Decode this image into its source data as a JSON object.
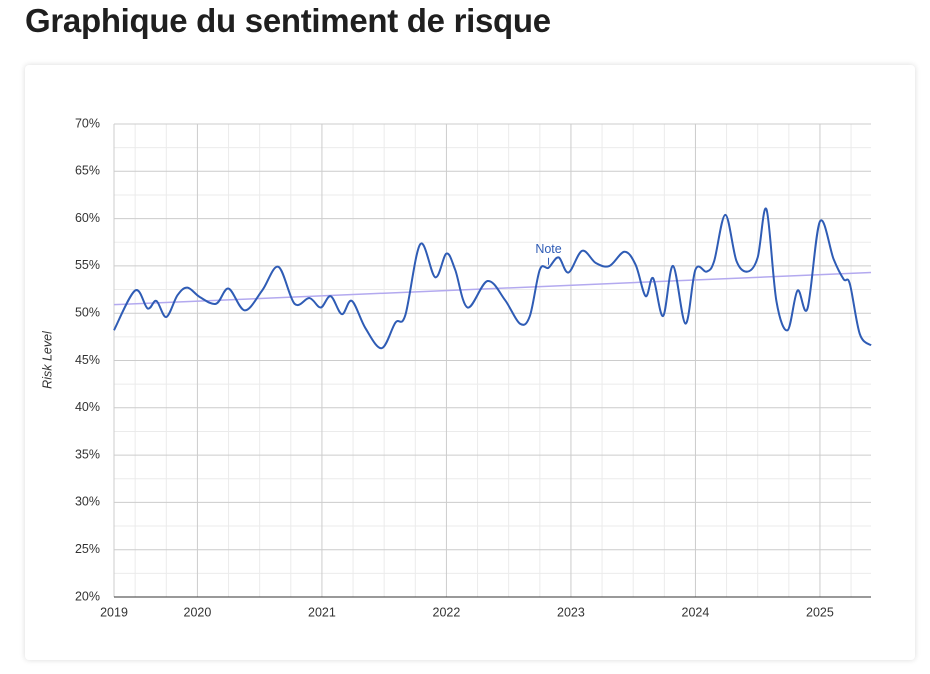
{
  "chart_data": {
    "type": "line",
    "title": "Graphique du sentiment de risque",
    "y_label": "Risk Level",
    "xlim": [
      2019.33,
      2025.41
    ],
    "xticks": [
      {
        "value": 2019.33,
        "label": "2019"
      },
      2020,
      2021,
      2022,
      2023,
      2024,
      2025
    ],
    "xminorticks": [
      2019.5,
      2019.75,
      2020.25,
      2020.5,
      2020.75,
      2021.25,
      2021.5,
      2021.75,
      2022.25,
      2022.5,
      2022.75,
      2023.25,
      2023.5,
      2023.75,
      2024.25,
      2024.5,
      2024.75,
      2025.25
    ],
    "ylim": [
      20,
      70
    ],
    "yticks": [
      {
        "value": 20,
        "label": "20%"
      },
      {
        "value": 25,
        "label": "25%"
      },
      {
        "value": 30,
        "label": "30%"
      },
      {
        "value": 35,
        "label": "35%"
      },
      {
        "value": 40,
        "label": "40%"
      },
      {
        "value": 45,
        "label": "45%"
      },
      {
        "value": 50,
        "label": "50%"
      },
      {
        "value": 55,
        "label": "55%"
      },
      {
        "value": 60,
        "label": "60%"
      },
      {
        "value": 65,
        "label": "65%"
      },
      {
        "value": 70,
        "label": "70%"
      }
    ],
    "yminorticks": [
      22.5,
      27.5,
      32.5,
      37.5,
      42.5,
      47.5,
      52.5,
      57.5,
      62.5,
      67.5
    ],
    "grid": true,
    "x": [
      2019.33,
      2019.5,
      2019.6,
      2019.67,
      2019.75,
      2019.84,
      2019.92,
      2020.02,
      2020.15,
      2020.25,
      2020.38,
      2020.52,
      2020.65,
      2020.78,
      2020.9,
      2020.99,
      2021.07,
      2021.16,
      2021.24,
      2021.35,
      2021.48,
      2021.59,
      2021.67,
      2021.79,
      2021.91,
      2022.0,
      2022.07,
      2022.17,
      2022.33,
      2022.47,
      2022.59,
      2022.67,
      2022.75,
      2022.82,
      2022.9,
      2022.98,
      2023.09,
      2023.2,
      2023.31,
      2023.43,
      2023.52,
      2023.6,
      2023.66,
      2023.74,
      2023.82,
      2023.92,
      2024.0,
      2024.09,
      2024.15,
      2024.24,
      2024.33,
      2024.42,
      2024.5,
      2024.57,
      2024.65,
      2024.74,
      2024.82,
      2024.9,
      2025.0,
      2025.11,
      2025.19,
      2025.24,
      2025.32,
      2025.41
    ],
    "series": [
      {
        "color": "#2f5cb5",
        "values": [
          48.2,
          52.4,
          50.5,
          51.3,
          49.6,
          51.9,
          52.7,
          51.7,
          51.0,
          52.6,
          50.3,
          52.4,
          54.9,
          51.0,
          51.6,
          50.6,
          51.8,
          49.9,
          51.3,
          48.4,
          46.3,
          49.0,
          49.8,
          57.3,
          53.8,
          56.3,
          54.6,
          50.6,
          53.4,
          51.4,
          48.9,
          49.7,
          54.6,
          54.8,
          55.9,
          54.3,
          56.6,
          55.3,
          55.0,
          56.5,
          55.1,
          51.8,
          53.7,
          49.7,
          55.0,
          48.9,
          54.6,
          54.4,
          55.5,
          60.4,
          55.5,
          54.4,
          55.9,
          61.0,
          51.3,
          48.2,
          52.4,
          50.5,
          59.7,
          55.7,
          53.6,
          53.1,
          47.8,
          46.6
        ]
      }
    ],
    "trendline": {
      "color": "#b3a9ef",
      "x": [
        2019.33,
        2025.41
      ],
      "values": [
        50.9,
        54.3
      ]
    },
    "annotation": {
      "text": "Note",
      "x": 2022.82,
      "value": 54.8
    }
  }
}
